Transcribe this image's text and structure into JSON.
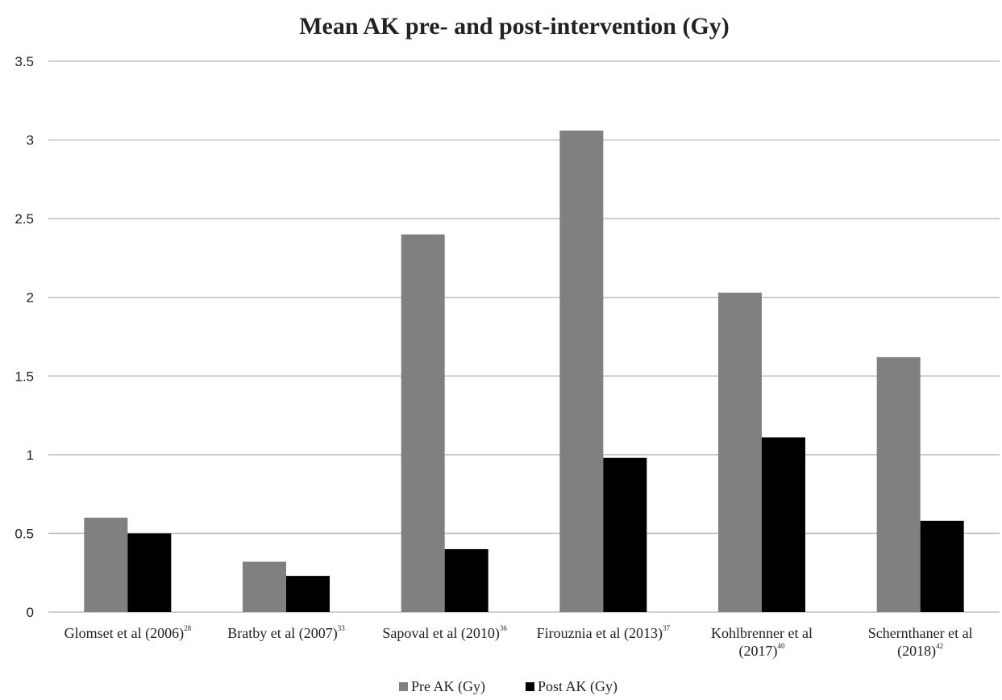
{
  "chart_data": {
    "type": "bar",
    "title": "Mean AK pre- and post-intervention (Gy)",
    "xlabel": "",
    "ylabel": "",
    "ylim": [
      0,
      3.5
    ],
    "yticks": [
      "0",
      "0.5",
      "1",
      "1.5",
      "2",
      "2.5",
      "3",
      "3.5"
    ],
    "grid": true,
    "legend_position": "bottom",
    "categories": [
      {
        "lines": [
          "Glomset et al (2006)"
        ],
        "sup": "28"
      },
      {
        "lines": [
          "Bratby et al (2007)"
        ],
        "sup": "33"
      },
      {
        "lines": [
          "Sapoval et al (2010)"
        ],
        "sup": "36"
      },
      {
        "lines": [
          "Firouznia et al (2013)"
        ],
        "sup": "37"
      },
      {
        "lines": [
          "Kohlbrenner et al",
          "(2017)"
        ],
        "sup": "40"
      },
      {
        "lines": [
          "Schernthaner et al",
          "(2018)"
        ],
        "sup": "42"
      }
    ],
    "series": [
      {
        "name": "Pre AK (Gy)",
        "color": "#808080",
        "values": [
          0.6,
          0.32,
          2.4,
          3.06,
          2.03,
          1.62
        ]
      },
      {
        "name": "Post AK (Gy)",
        "color": "#000000",
        "values": [
          0.5,
          0.23,
          0.4,
          0.98,
          1.11,
          0.58
        ]
      }
    ]
  }
}
